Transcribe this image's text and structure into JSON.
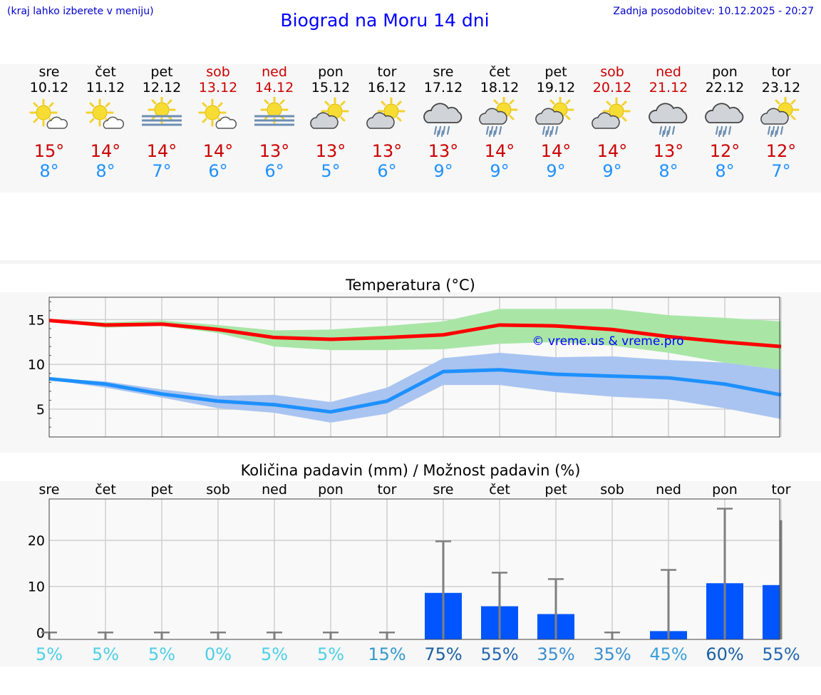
{
  "header": {
    "left_note": "(kraj lahko izberete v meniju)",
    "title": "Biograd na Moru 14 dni",
    "updated": "Zadnja posodobitev: 10.12.2025 - 20:27"
  },
  "days": [
    {
      "name": "sre",
      "date": "10.12",
      "weekend": false,
      "icon": "sun-cloud-icon",
      "tmax": "15°",
      "tmin": "8°"
    },
    {
      "name": "čet",
      "date": "11.12",
      "weekend": false,
      "icon": "sun-cloud-icon",
      "tmax": "14°",
      "tmin": "8°"
    },
    {
      "name": "pet",
      "date": "12.12",
      "weekend": false,
      "icon": "sun-fog-icon",
      "tmax": "14°",
      "tmin": "7°"
    },
    {
      "name": "sob",
      "date": "13.12",
      "weekend": true,
      "icon": "sun-cloud-icon",
      "tmax": "14°",
      "tmin": "6°"
    },
    {
      "name": "ned",
      "date": "14.12",
      "weekend": true,
      "icon": "sun-fog-icon",
      "tmax": "13°",
      "tmin": "6°"
    },
    {
      "name": "pon",
      "date": "15.12",
      "weekend": false,
      "icon": "partly-cloudy-icon",
      "tmax": "13°",
      "tmin": "5°"
    },
    {
      "name": "tor",
      "date": "16.12",
      "weekend": false,
      "icon": "partly-cloudy-icon",
      "tmax": "13°",
      "tmin": "6°"
    },
    {
      "name": "sre",
      "date": "17.12",
      "weekend": false,
      "icon": "cloud-rain-icon",
      "tmax": "13°",
      "tmin": "9°"
    },
    {
      "name": "čet",
      "date": "18.12",
      "weekend": false,
      "icon": "sun-cloud-rain-icon",
      "tmax": "14°",
      "tmin": "9°"
    },
    {
      "name": "pet",
      "date": "19.12",
      "weekend": false,
      "icon": "sun-cloud-rain-icon",
      "tmax": "14°",
      "tmin": "9°"
    },
    {
      "name": "sob",
      "date": "20.12",
      "weekend": true,
      "icon": "partly-cloudy-icon",
      "tmax": "14°",
      "tmin": "9°"
    },
    {
      "name": "ned",
      "date": "21.12",
      "weekend": true,
      "icon": "cloud-rain-icon",
      "tmax": "13°",
      "tmin": "8°"
    },
    {
      "name": "pon",
      "date": "22.12",
      "weekend": false,
      "icon": "cloud-rain-icon",
      "tmax": "12°",
      "tmin": "8°"
    },
    {
      "name": "tor",
      "date": "23.12",
      "weekend": false,
      "icon": "sun-cloud-rain-icon",
      "tmax": "12°",
      "tmin": "7°"
    }
  ],
  "chart_data": [
    {
      "type": "line",
      "title": "Temperatura (°C)",
      "xlabel": "",
      "ylabel": "",
      "x": [
        0,
        1,
        2,
        3,
        4,
        5,
        6,
        7,
        8,
        9,
        10,
        11,
        12,
        13
      ],
      "ylim": [
        1.9,
        17.5
      ],
      "yticks": [
        5,
        10,
        15
      ],
      "grid": true,
      "watermark": "© vreme.us & vreme.pro",
      "colors": {
        "max": "#ff0000",
        "max_band": "#a9e6a6",
        "min": "#1e90ff",
        "min_band": "#a9c4f0"
      },
      "series": [
        {
          "name": "max",
          "values": [
            14.9,
            14.4,
            14.5,
            13.9,
            13.0,
            12.8,
            13.0,
            13.3,
            14.4,
            14.3,
            13.9,
            13.1,
            12.5,
            12.0
          ]
        },
        {
          "name": "max_upper",
          "values": [
            15.0,
            14.7,
            14.9,
            14.4,
            13.8,
            13.9,
            14.3,
            14.8,
            16.2,
            16.2,
            16.2,
            15.5,
            15.2,
            14.8
          ]
        },
        {
          "name": "max_lower",
          "values": [
            14.8,
            14.1,
            14.3,
            13.5,
            12.0,
            11.6,
            11.6,
            11.7,
            12.3,
            12.5,
            12.1,
            11.3,
            10.2,
            9.4
          ]
        },
        {
          "name": "min",
          "values": [
            8.4,
            7.8,
            6.7,
            5.9,
            5.5,
            4.7,
            5.9,
            9.2,
            9.4,
            8.9,
            8.7,
            8.5,
            7.8,
            6.6
          ]
        },
        {
          "name": "min_upper",
          "values": [
            8.5,
            8.1,
            7.2,
            6.5,
            6.6,
            5.8,
            7.4,
            10.7,
            11.3,
            10.8,
            10.9,
            10.5,
            10.2,
            9.4
          ]
        },
        {
          "name": "min_lower",
          "values": [
            8.3,
            7.4,
            6.3,
            5.1,
            4.6,
            3.5,
            4.5,
            7.7,
            7.7,
            6.9,
            6.4,
            6.1,
            5.1,
            3.9
          ]
        }
      ]
    },
    {
      "type": "bar",
      "title": "Količina padavin (mm) / Možnost padavin (%)",
      "xlabel": "",
      "ylabel": "",
      "categories": [
        "sre",
        "čet",
        "pet",
        "sob",
        "ned",
        "pon",
        "tor",
        "sre",
        "čet",
        "pet",
        "sob",
        "ned",
        "pon",
        "tor"
      ],
      "ylim": [
        -1.5,
        29
      ],
      "yticks": [
        0,
        10,
        20
      ],
      "grid": true,
      "colors": {
        "bar": "#0055ff",
        "whisker": "#808080"
      },
      "series": [
        {
          "name": "precipitation_mm",
          "values": [
            0,
            0,
            0,
            0,
            0,
            0,
            0,
            8.6,
            5.7,
            4.0,
            0,
            0.3,
            10.7,
            10.3
          ]
        },
        {
          "name": "precipitation_max_mm",
          "values": [
            0,
            0,
            0,
            0,
            0,
            0,
            0,
            19.8,
            13.0,
            11.6,
            0,
            13.6,
            26.9,
            24.4
          ]
        }
      ],
      "probability": [
        "5%",
        "5%",
        "5%",
        "0%",
        "5%",
        "5%",
        "15%",
        "75%",
        "55%",
        "35%",
        "35%",
        "45%",
        "60%",
        "55%"
      ],
      "probability_colors": [
        "#4ccfe6",
        "#4ccfe6",
        "#4ccfe6",
        "#4ccfe6",
        "#4ccfe6",
        "#4ccfe6",
        "#3399cc",
        "#1a5fa3",
        "#2266b0",
        "#3a8fd0",
        "#3a8fd0",
        "#3a9fd8",
        "#1a5fa3",
        "#2266b0"
      ]
    }
  ]
}
